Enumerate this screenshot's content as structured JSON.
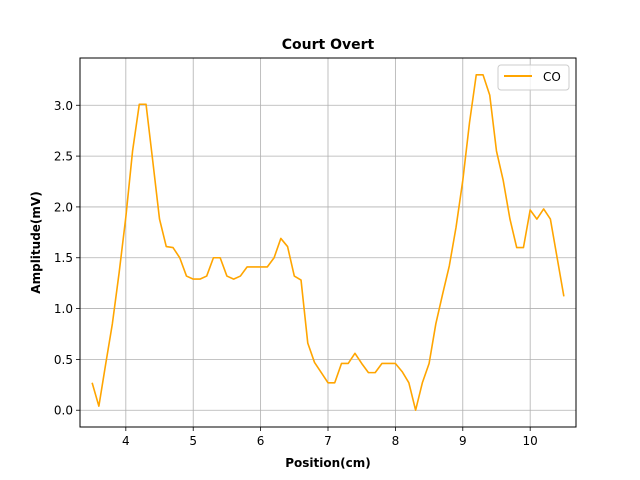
{
  "chart_data": {
    "type": "line",
    "title": "Court Overt",
    "xlabel": "Position(cm)",
    "ylabel": "Amplitude(mV)",
    "xlim": [
      3.32,
      10.68
    ],
    "ylim": [
      -0.165,
      3.465
    ],
    "xticks": [
      4,
      5,
      6,
      7,
      8,
      9,
      10
    ],
    "yticks": [
      0.0,
      0.5,
      1.0,
      1.5,
      2.0,
      2.5,
      3.0
    ],
    "xtick_labels": [
      "4",
      "5",
      "6",
      "7",
      "8",
      "9",
      "10"
    ],
    "ytick_labels": [
      "0.0",
      "0.5",
      "1.0",
      "1.5",
      "2.0",
      "2.5",
      "3.0"
    ],
    "grid": true,
    "legend_position": "top-right",
    "series": [
      {
        "name": "CO",
        "color": "#ffa500",
        "x": [
          3.5,
          3.6,
          3.7,
          3.8,
          3.9,
          4.0,
          4.1,
          4.2,
          4.3,
          4.4,
          4.5,
          4.6,
          4.7,
          4.8,
          4.9,
          5.0,
          5.1,
          5.2,
          5.3,
          5.4,
          5.5,
          5.6,
          5.7,
          5.8,
          5.9,
          6.0,
          6.1,
          6.2,
          6.3,
          6.4,
          6.5,
          6.6,
          6.7,
          6.8,
          6.9,
          7.0,
          7.1,
          7.2,
          7.3,
          7.4,
          7.5,
          7.6,
          7.7,
          7.8,
          7.9,
          8.0,
          8.1,
          8.2,
          8.3,
          8.4,
          8.5,
          8.6,
          8.7,
          8.8,
          8.9,
          9.0,
          9.1,
          9.2,
          9.3,
          9.4,
          9.5,
          9.6,
          9.7,
          9.8,
          9.9,
          10.0,
          10.1,
          10.2,
          10.3,
          10.4,
          10.5
        ],
        "y": [
          0.27,
          0.04,
          0.45,
          0.85,
          1.35,
          1.9,
          2.55,
          3.01,
          3.01,
          2.45,
          1.88,
          1.61,
          1.6,
          1.5,
          1.32,
          1.29,
          1.29,
          1.32,
          1.5,
          1.5,
          1.32,
          1.29,
          1.32,
          1.41,
          1.41,
          1.41,
          1.41,
          1.5,
          1.69,
          1.61,
          1.32,
          1.28,
          0.66,
          0.47,
          0.37,
          0.27,
          0.27,
          0.46,
          0.46,
          0.56,
          0.46,
          0.37,
          0.37,
          0.46,
          0.46,
          0.46,
          0.38,
          0.27,
          0.0,
          0.27,
          0.46,
          0.85,
          1.14,
          1.42,
          1.8,
          2.26,
          2.83,
          3.3,
          3.3,
          3.1,
          2.55,
          2.26,
          1.88,
          1.6,
          1.6,
          1.97,
          1.88,
          1.98,
          1.88,
          1.5,
          1.12
        ]
      }
    ]
  }
}
